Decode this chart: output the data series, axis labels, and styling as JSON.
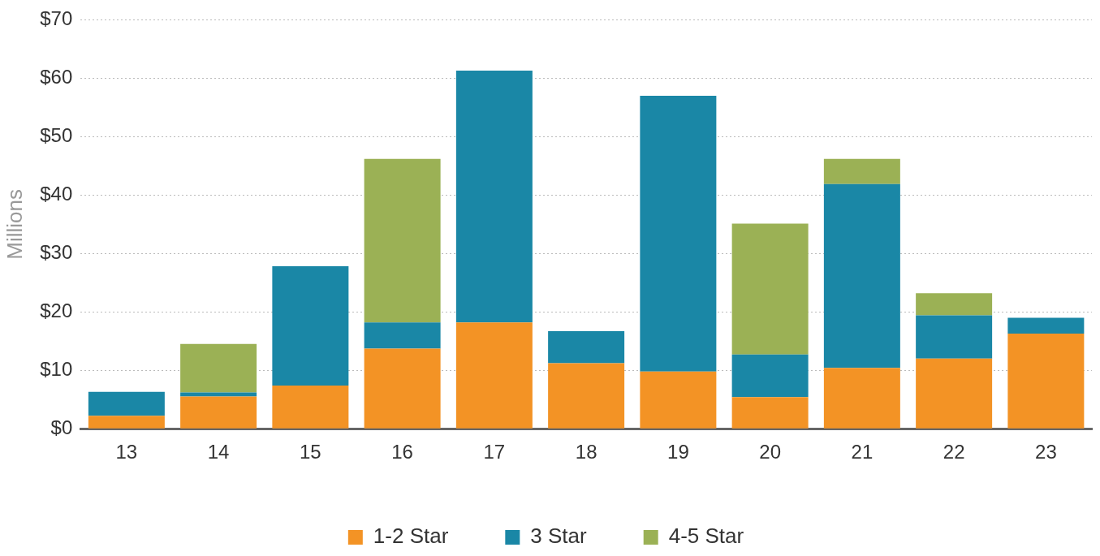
{
  "chart_data": {
    "type": "bar",
    "stacked": true,
    "ylabel": "Millions",
    "categories": [
      "13",
      "14",
      "15",
      "16",
      "17",
      "18",
      "19",
      "20",
      "21",
      "22",
      "23"
    ],
    "series": [
      {
        "name": "1-2 Star",
        "color": "#f39325",
        "values": [
          2.2,
          5.5,
          7.4,
          13.7,
          18.2,
          11.2,
          9.8,
          5.4,
          10.4,
          12.0,
          16.3
        ]
      },
      {
        "name": "3 Star",
        "color": "#1a87a6",
        "values": [
          4.1,
          0.7,
          20.4,
          4.5,
          43.1,
          5.5,
          47.2,
          7.3,
          31.5,
          7.4,
          2.7
        ]
      },
      {
        "name": "4-5 Star",
        "color": "#9bb155",
        "values": [
          0,
          8.3,
          0,
          28.0,
          0,
          0,
          0,
          22.4,
          4.3,
          3.8,
          0
        ]
      }
    ],
    "ylim": [
      0,
      70
    ],
    "yticks": [
      {
        "value": 0,
        "label": "$0"
      },
      {
        "value": 10,
        "label": "$10"
      },
      {
        "value": 20,
        "label": "$20"
      },
      {
        "value": 30,
        "label": "$30"
      },
      {
        "value": 40,
        "label": "$40"
      },
      {
        "value": 50,
        "label": "$50"
      },
      {
        "value": 60,
        "label": "$60"
      },
      {
        "value": 70,
        "label": "$70"
      }
    ],
    "grid": "y",
    "legend": "bottom"
  }
}
